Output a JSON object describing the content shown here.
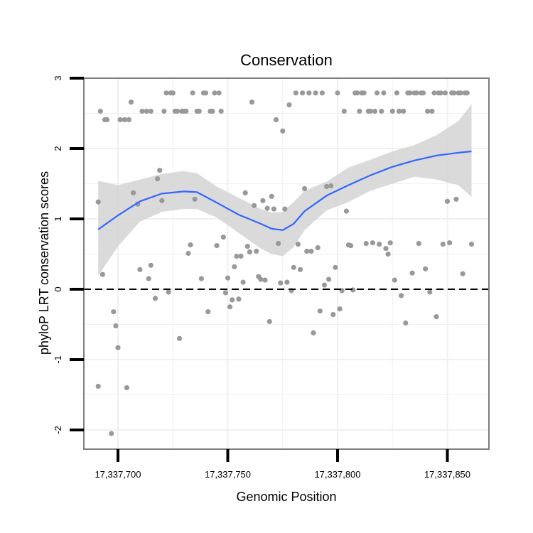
{
  "chart_data": {
    "type": "scatter",
    "title": "Conservation",
    "xlabel": "Genomic Position",
    "ylabel": "phyloP LRT conservation scores",
    "xlim": [
      17337683,
      17337866
    ],
    "ylim": [
      -2.25,
      3.0
    ],
    "x_ticks": [
      17337700,
      17337750,
      17337800,
      17337850
    ],
    "x_tick_labels": [
      "17,337,700",
      "17,337,750",
      "17,337,800",
      "17,337,850"
    ],
    "y_ticks": [
      -2,
      -1,
      0,
      1,
      2,
      3
    ],
    "y_tick_labels": [
      "-2",
      "-1",
      "0",
      "1",
      "2",
      "3"
    ],
    "grid": true,
    "reference_line": {
      "y": 0,
      "style": "dashed"
    },
    "colors": {
      "points": "#999999",
      "smooth": "#3366ff",
      "band": "#d3d3d3",
      "grid": "#f0f0f0",
      "border": "#7f7f7f"
    },
    "points": [
      [
        17337691,
        1.24
      ],
      [
        17337691,
        -1.38
      ],
      [
        17337692,
        2.53
      ],
      [
        17337693,
        0.21
      ],
      [
        17337694,
        2.41
      ],
      [
        17337695,
        2.41
      ],
      [
        17337697,
        -2.05
      ],
      [
        17337698,
        -0.32
      ],
      [
        17337699,
        -0.52
      ],
      [
        17337700,
        -0.83
      ],
      [
        17337701,
        2.41
      ],
      [
        17337703,
        2.41
      ],
      [
        17337704,
        -1.4
      ],
      [
        17337705,
        2.41
      ],
      [
        17337706,
        2.66
      ],
      [
        17337707,
        1.37
      ],
      [
        17337709,
        1.21
      ],
      [
        17337710,
        0.28
      ],
      [
        17337711,
        2.53
      ],
      [
        17337713,
        2.53
      ],
      [
        17337714,
        0.15
      ],
      [
        17337715,
        0.34
      ],
      [
        17337715,
        2.53
      ],
      [
        17337717,
        -0.13
      ],
      [
        17337718,
        1.57
      ],
      [
        17337719,
        1.69
      ],
      [
        17337720,
        1.26
      ],
      [
        17337721,
        2.53
      ],
      [
        17337722,
        2.79
      ],
      [
        17337723,
        -0.04
      ],
      [
        17337724,
        2.79
      ],
      [
        17337725,
        2.79
      ],
      [
        17337726,
        2.53
      ],
      [
        17337727,
        2.53
      ],
      [
        17337728,
        -0.7
      ],
      [
        17337729,
        2.53
      ],
      [
        17337730,
        2.53
      ],
      [
        17337731,
        2.53
      ],
      [
        17337732,
        0.51
      ],
      [
        17337733,
        0.63
      ],
      [
        17337734,
        2.79
      ],
      [
        17337735,
        1.28
      ],
      [
        17337736,
        2.53
      ],
      [
        17337737,
        2.53
      ],
      [
        17337738,
        0.15
      ],
      [
        17337739,
        2.79
      ],
      [
        17337740,
        2.79
      ],
      [
        17337741,
        -0.32
      ],
      [
        17337742,
        2.53
      ],
      [
        17337743,
        2.53
      ],
      [
        17337744,
        2.79
      ],
      [
        17337745,
        0.62
      ],
      [
        17337746,
        2.79
      ],
      [
        17337747,
        2.53
      ],
      [
        17337748,
        0.74
      ],
      [
        17337749,
        -0.05
      ],
      [
        17337750,
        0.16
      ],
      [
        17337751,
        -0.25
      ],
      [
        17337752,
        -0.15
      ],
      [
        17337753,
        0.32
      ],
      [
        17337754,
        0.47
      ],
      [
        17337755,
        -0.14
      ],
      [
        17337756,
        0.47
      ],
      [
        17337757,
        0.1
      ],
      [
        17337758,
        1.37
      ],
      [
        17337759,
        0.61
      ],
      [
        17337760,
        0.53
      ],
      [
        17337761,
        2.66
      ],
      [
        17337762,
        1.19
      ],
      [
        17337763,
        0.54
      ],
      [
        17337764,
        0.18
      ],
      [
        17337765,
        0.14
      ],
      [
        17337766,
        1.26
      ],
      [
        17337767,
        0.13
      ],
      [
        17337768,
        1.15
      ],
      [
        17337769,
        -0.46
      ],
      [
        17337770,
        1.32
      ],
      [
        17337771,
        1.14
      ],
      [
        17337772,
        2.41
      ],
      [
        17337773,
        0.65
      ],
      [
        17337774,
        0.09
      ],
      [
        17337775,
        2.25
      ],
      [
        17337776,
        1.14
      ],
      [
        17337777,
        0.1
      ],
      [
        17337778,
        2.62
      ],
      [
        17337779,
        -0.02
      ],
      [
        17337780,
        0.31
      ],
      [
        17337781,
        2.79
      ],
      [
        17337782,
        0.64
      ],
      [
        17337783,
        0.28
      ],
      [
        17337784,
        2.79
      ],
      [
        17337785,
        1.43
      ],
      [
        17337786,
        0.54
      ],
      [
        17337787,
        2.79
      ],
      [
        17337788,
        0.54
      ],
      [
        17337789,
        -0.62
      ],
      [
        17337790,
        2.79
      ],
      [
        17337791,
        0.59
      ],
      [
        17337792,
        -0.31
      ],
      [
        17337793,
        2.79
      ],
      [
        17337794,
        0.06
      ],
      [
        17337795,
        1.46
      ],
      [
        17337796,
        0.14
      ],
      [
        17337797,
        1.47
      ],
      [
        17337798,
        -0.36
      ],
      [
        17337799,
        0.31
      ],
      [
        17337800,
        2.79
      ],
      [
        17337801,
        -0.28
      ],
      [
        17337802,
        -0.02
      ],
      [
        17337803,
        2.53
      ],
      [
        17337804,
        1.11
      ],
      [
        17337805,
        0.63
      ],
      [
        17337806,
        0.62
      ],
      [
        17337807,
        -0.01
      ],
      [
        17337808,
        2.79
      ],
      [
        17337809,
        2.79
      ],
      [
        17337810,
        2.53
      ],
      [
        17337811,
        2.79
      ],
      [
        17337812,
        2.79
      ],
      [
        17337813,
        0.65
      ],
      [
        17337814,
        2.53
      ],
      [
        17337815,
        2.53
      ],
      [
        17337816,
        0.66
      ],
      [
        17337817,
        2.53
      ],
      [
        17337818,
        2.79
      ],
      [
        17337819,
        0.64
      ],
      [
        17337820,
        2.53
      ],
      [
        17337821,
        2.79
      ],
      [
        17337822,
        0.58
      ],
      [
        17337823,
        0.5
      ],
      [
        17337824,
        0.66
      ],
      [
        17337825,
        2.53
      ],
      [
        17337826,
        0.13
      ],
      [
        17337827,
        2.79
      ],
      [
        17337828,
        2.53
      ],
      [
        17337829,
        -0.09
      ],
      [
        17337830,
        2.53
      ],
      [
        17337831,
        -0.48
      ],
      [
        17337832,
        2.79
      ],
      [
        17337833,
        2.79
      ],
      [
        17337834,
        0.23
      ],
      [
        17337835,
        2.79
      ],
      [
        17337836,
        2.79
      ],
      [
        17337837,
        0.65
      ],
      [
        17337838,
        2.79
      ],
      [
        17337839,
        2.79
      ],
      [
        17337840,
        0.29
      ],
      [
        17337841,
        2.53
      ],
      [
        17337842,
        -0.04
      ],
      [
        17337843,
        2.53
      ],
      [
        17337844,
        2.79
      ],
      [
        17337845,
        -0.39
      ],
      [
        17337846,
        2.79
      ],
      [
        17337847,
        2.79
      ],
      [
        17337848,
        0.64
      ],
      [
        17337849,
        2.79
      ],
      [
        17337850,
        1.25
      ],
      [
        17337851,
        0.66
      ],
      [
        17337852,
        2.79
      ],
      [
        17337853,
        2.79
      ],
      [
        17337854,
        1.28
      ],
      [
        17337855,
        2.79
      ],
      [
        17337856,
        2.79
      ],
      [
        17337857,
        0.22
      ],
      [
        17337858,
        2.79
      ],
      [
        17337859,
        2.79
      ],
      [
        17337861,
        0.64
      ]
    ],
    "smooth": {
      "x": [
        17337691,
        17337700,
        17337710,
        17337720,
        17337730,
        17337736,
        17337745,
        17337755,
        17337765,
        17337770,
        17337775,
        17337780,
        17337785,
        17337795,
        17337805,
        17337815,
        17337825,
        17337835,
        17337845,
        17337855,
        17337861
      ],
      "y": [
        0.85,
        1.05,
        1.25,
        1.36,
        1.39,
        1.38,
        1.23,
        1.06,
        0.93,
        0.86,
        0.84,
        0.93,
        1.11,
        1.33,
        1.48,
        1.62,
        1.74,
        1.83,
        1.9,
        1.94,
        1.96
      ],
      "lower": [
        0.19,
        0.61,
        0.96,
        1.1,
        1.14,
        1.14,
        1.02,
        0.8,
        0.58,
        0.5,
        0.47,
        0.6,
        0.84,
        1.12,
        1.24,
        1.4,
        1.5,
        1.6,
        1.56,
        1.48,
        1.31
      ],
      "upper": [
        1.54,
        1.48,
        1.56,
        1.64,
        1.68,
        1.65,
        1.46,
        1.3,
        1.14,
        1.09,
        1.1,
        1.24,
        1.4,
        1.53,
        1.73,
        1.84,
        1.96,
        2.05,
        2.19,
        2.39,
        2.63
      ]
    }
  }
}
